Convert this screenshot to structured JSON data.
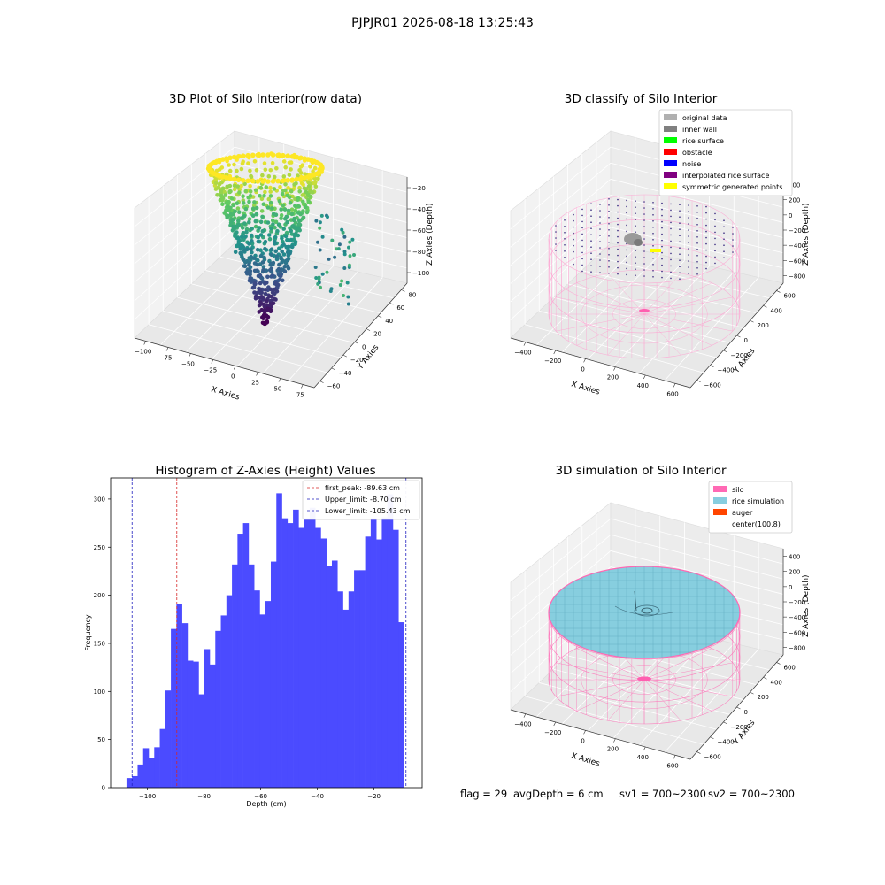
{
  "suptitle": "PJPJR01 2026-08-18 13:25:43",
  "footer": {
    "flag": "flag = 29",
    "avg_depth": "avgDepth = 6 cm",
    "sv1": "sv1 = 700~2300",
    "sv2": "sv2 = 700~2300"
  },
  "colors": {
    "hist_bar": "#4b4bff",
    "first_peak": "#d62728",
    "limits": "#1f1fbf",
    "silo": "#ff69b4",
    "rice_simulation": "#87cedf",
    "auger": "#ff4500"
  },
  "chart_data": [
    {
      "type": "scatter",
      "subtype": "3d",
      "title": "3D Plot of Silo Interior(row data)",
      "xlabel": "X Axies",
      "ylabel": "Y Axies",
      "zlabel": "Z Axies (Depth)",
      "xticks": [
        "−100",
        "−75",
        "−50",
        "−25",
        "0",
        "25",
        "50",
        "75"
      ],
      "yticks": [
        "−60",
        "−40",
        "−20",
        "0",
        "20",
        "40",
        "60",
        "80"
      ],
      "zticks": [
        "−100",
        "−80",
        "−60",
        "−40",
        "−20"
      ],
      "xlim": [
        -105,
        85
      ],
      "ylim": [
        -62,
        85
      ],
      "zlim": [
        -110,
        -8
      ],
      "colormap": "viridis"
    },
    {
      "type": "scatter",
      "subtype": "3d",
      "title": "3D classify of Silo Interior",
      "xlabel": "X Axies",
      "ylabel": "Y Axies",
      "zlabel": "Z Axies (Depth)",
      "xticks": [
        "−400",
        "−200",
        "0",
        "200",
        "400",
        "600"
      ],
      "yticks": [
        "−600",
        "−400",
        "−200",
        "0",
        "200",
        "400",
        "600"
      ],
      "zticks": [
        "−800",
        "−600",
        "−400",
        "−200",
        "0",
        "200",
        "400"
      ],
      "legend_position": "upper right",
      "legend": [
        {
          "label": "original data",
          "color": "#b0b0b0"
        },
        {
          "label": "inner wall",
          "color": "#808080"
        },
        {
          "label": "rice surface",
          "color": "#00ff00"
        },
        {
          "label": "obstacle",
          "color": "#ff0000"
        },
        {
          "label": "noise",
          "color": "#0000ff"
        },
        {
          "label": "interpolated rice surface",
          "color": "#800080"
        },
        {
          "label": "symmetric generated points",
          "color": "#ffff00"
        }
      ]
    },
    {
      "type": "bar",
      "subtype": "histogram",
      "title": "Histogram of Z-Axies (Height) Values",
      "xlabel": "Depth (cm)",
      "ylabel": "Frequency",
      "xlim": [
        -113,
        -3
      ],
      "ylim": [
        0,
        322
      ],
      "xticks": [
        -100,
        -80,
        -60,
        -40,
        -20
      ],
      "yticks": [
        0,
        50,
        100,
        150,
        200,
        250,
        300
      ],
      "bin_start": -107.4,
      "bin_width": 1.96,
      "values": [
        10,
        12,
        24,
        41,
        31,
        42,
        61,
        101,
        165,
        191,
        171,
        132,
        131,
        97,
        144,
        128,
        163,
        179,
        200,
        232,
        264,
        275,
        232,
        205,
        180,
        194,
        235,
        306,
        280,
        275,
        289,
        270,
        280,
        291,
        270,
        259,
        230,
        236,
        204,
        185,
        204,
        226,
        226,
        261,
        280,
        258,
        281,
        305,
        268,
        172
      ],
      "legend_position": "upper right",
      "vlines": [
        {
          "label": "first_peak: -89.63 cm",
          "x": -89.63,
          "color": "#d62728"
        },
        {
          "label": "Upper_limit: -8.70 cm",
          "x": -8.7,
          "color": "#1f1fbf"
        },
        {
          "label": "Lower_limit: -105.43 cm",
          "x": -105.43,
          "color": "#1f1fbf"
        }
      ]
    },
    {
      "type": "scatter",
      "subtype": "3d",
      "title": "3D simulation of Silo Interior",
      "xlabel": "X Axies",
      "ylabel": "Y Axies",
      "zlabel": "Z Axies (Depth)",
      "xticks": [
        "−400",
        "−200",
        "0",
        "200",
        "400",
        "600"
      ],
      "yticks": [
        "−600",
        "−400",
        "−200",
        "0",
        "200",
        "400",
        "600"
      ],
      "zticks": [
        "−800",
        "−600",
        "−400",
        "−200",
        "0",
        "200",
        "400"
      ],
      "legend_position": "upper right",
      "legend": [
        {
          "label": "silo",
          "color": "#ff69b4"
        },
        {
          "label": "rice simulation",
          "color": "#87cedf"
        },
        {
          "label": "auger",
          "color": "#ff4500"
        },
        {
          "label": "center(100,8)",
          "color": "#ffffff"
        }
      ]
    }
  ]
}
